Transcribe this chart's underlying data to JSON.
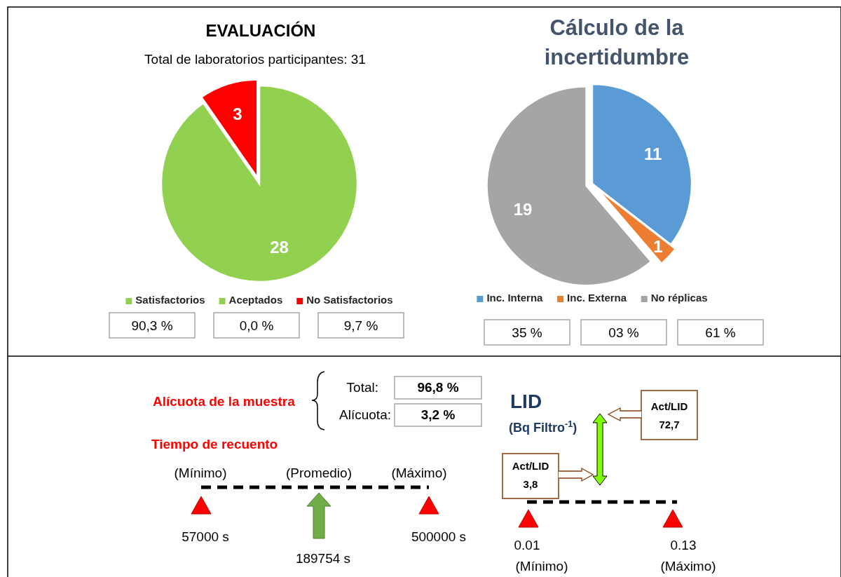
{
  "chart_data": [
    {
      "type": "pie",
      "title": "EVALUACIÓN",
      "subtitle": "Total de laboratorios participantes: 31",
      "categories": [
        "Satisfactorios",
        "Aceptados",
        "No Satisfactorios"
      ],
      "values": [
        28,
        0,
        3
      ],
      "colors": [
        "#92d050",
        "#92d050",
        "#ff0000"
      ],
      "value_labels": [
        "28",
        null,
        "3"
      ],
      "legend": "bottom",
      "annotations": [
        "90,3 %",
        "0,0 %",
        "9,7 %"
      ]
    },
    {
      "type": "pie",
      "title": "Cálculo de la incertidumbre",
      "categories": [
        "Inc. Interna",
        "Inc. Externa",
        "No réplicas"
      ],
      "values": [
        11,
        1,
        19
      ],
      "colors": [
        "#5b9bd5",
        "#ed7d31",
        "#a5a5a5"
      ],
      "data_labels": true,
      "legend": "bottom",
      "annotations": [
        "35 %",
        "03 %",
        "61 %"
      ]
    },
    {
      "type": "other",
      "annotations": [
        "Alícuota de la muestra",
        "Total:",
        "96,8 %",
        "Alícuota:",
        "3,2 %",
        "Tiempo de recuento",
        "(Mínimo)",
        "(Promedio)",
        "(Máximo)",
        "57000 s",
        "189754 s",
        "500000 s",
        "LID",
        "(Bq Filtro$^{-1}$)",
        "Act/LID",
        "72,7",
        "Act/LID",
        "3,8",
        "0.01",
        "(Mínimo)",
        "0.13",
        "(Máximo)"
      ]
    }
  ]
}
